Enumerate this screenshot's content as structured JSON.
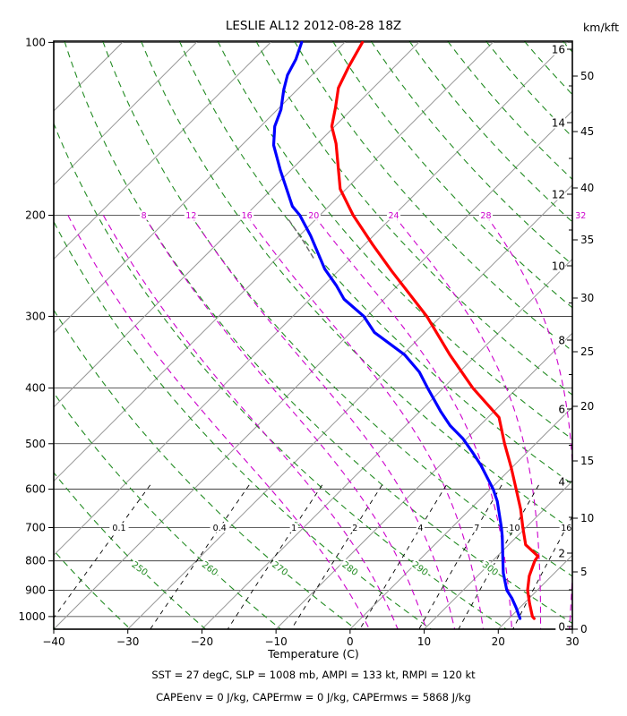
{
  "page": {
    "background": "#ffffff"
  },
  "header": {
    "title": "LESLIE AL12 2012-08-28 18Z",
    "right_axis_header": "km/kft"
  },
  "footer": {
    "line1": "SST = 27 degC, SLP = 1008 mb, AMPI = 133 kt, RMPI = 120 kt",
    "line2": "CAPEenv = 0 J/kg, CAPErmw = 0 J/kg, CAPErmws = 5868 J/kg"
  },
  "chart_data": {
    "type": "line",
    "subtype": "skew-T log-P sounding",
    "title": "LESLIE AL12 2012-08-28 18Z",
    "xlabel": "Temperature (C)",
    "x_axis": {
      "min": -40,
      "max": 30,
      "ticks": [
        -40,
        -30,
        -20,
        -10,
        0,
        10,
        20,
        30
      ]
    },
    "pressure_axis": {
      "scale": "log",
      "top_mb": 100,
      "bottom_mb": 1050,
      "ticks_mb": [
        100,
        200,
        300,
        400,
        500,
        600,
        700,
        800,
        900,
        1000
      ]
    },
    "altitude_axis": {
      "header": "km/kft",
      "km_labels": [
        [
          16,
          55
        ],
        [
          14,
          137
        ],
        [
          12,
          217
        ],
        [
          10,
          297
        ],
        [
          8,
          380
        ],
        [
          6,
          457
        ],
        [
          4,
          538
        ],
        [
          2,
          618
        ],
        [
          0,
          700
        ]
      ],
      "kft_labels": [
        [
          50,
          85
        ],
        [
          45,
          147
        ],
        [
          40,
          210
        ],
        [
          35,
          268
        ],
        [
          30,
          333
        ],
        [
          25,
          393
        ],
        [
          20,
          454
        ],
        [
          15,
          515
        ],
        [
          10,
          579
        ],
        [
          5,
          639
        ],
        [
          0,
          703
        ]
      ]
    },
    "grid": {
      "isotherms_C": {
        "min": -120,
        "max": 30,
        "step": 10
      },
      "dry_adiabats_K": {
        "min": 230,
        "max": 450,
        "step": 10,
        "labeled": [
          250,
          260,
          270,
          280,
          290,
          300
        ]
      },
      "moist_adiabats_C": {
        "min": 0,
        "max": 40,
        "step": 4,
        "labeled": [
          8,
          12,
          16,
          20,
          24,
          28,
          32
        ],
        "label_pressure_mb": 200,
        "top_mb": 200
      },
      "mixing_ratio_g_kg": {
        "values": [
          0.1,
          0.4,
          1,
          2,
          4,
          7,
          10,
          16
        ],
        "label_pressure_mb": 700,
        "top_mb": 590
      }
    },
    "series": [
      {
        "name": "temperature",
        "color": "#ff0000",
        "points_p_T": [
          [
            1008,
            23.4
          ],
          [
            1000,
            22.9
          ],
          [
            950,
            20.8
          ],
          [
            900,
            18.7
          ],
          [
            850,
            17.0
          ],
          [
            800,
            15.7
          ],
          [
            785,
            15.5
          ],
          [
            750,
            12.3
          ],
          [
            700,
            9.6
          ],
          [
            650,
            6.8
          ],
          [
            600,
            3.5
          ],
          [
            550,
            -0.1
          ],
          [
            500,
            -4.2
          ],
          [
            450,
            -8.5
          ],
          [
            400,
            -16.0
          ],
          [
            350,
            -23.6
          ],
          [
            300,
            -31.9
          ],
          [
            250,
            -42.8
          ],
          [
            225,
            -48.9
          ],
          [
            200,
            -55.5
          ],
          [
            180,
            -60.8
          ],
          [
            150,
            -67.5
          ],
          [
            140,
            -70.4
          ],
          [
            130,
            -72.4
          ],
          [
            120,
            -74.7
          ],
          [
            110,
            -76.2
          ],
          [
            100,
            -77.6
          ]
        ]
      },
      {
        "name": "dewpoint",
        "color": "#0000ff",
        "points_p_T": [
          [
            1008,
            21.5
          ],
          [
            965,
            19.5
          ],
          [
            930,
            17.7
          ],
          [
            900,
            15.9
          ],
          [
            840,
            13.1
          ],
          [
            800,
            11.4
          ],
          [
            725,
            8.0
          ],
          [
            700,
            6.7
          ],
          [
            630,
            2.6
          ],
          [
            600,
            0.4
          ],
          [
            545,
            -4.5
          ],
          [
            520,
            -7.1
          ],
          [
            490,
            -10.5
          ],
          [
            465,
            -14.0
          ],
          [
            440,
            -17.1
          ],
          [
            400,
            -22.1
          ],
          [
            375,
            -25.4
          ],
          [
            350,
            -29.7
          ],
          [
            320,
            -36.8
          ],
          [
            300,
            -40.4
          ],
          [
            280,
            -45.4
          ],
          [
            265,
            -48.3
          ],
          [
            248,
            -52.1
          ],
          [
            217,
            -58.5
          ],
          [
            200,
            -62.7
          ],
          [
            193,
            -64.9
          ],
          [
            167,
            -71.4
          ],
          [
            151,
            -75.7
          ],
          [
            140,
            -78.1
          ],
          [
            131,
            -79.5
          ],
          [
            121,
            -81.8
          ],
          [
            114,
            -83.3
          ],
          [
            107,
            -84.3
          ],
          [
            100,
            -85.8
          ]
        ]
      },
      {
        "name": "gray-dashed-segment",
        "color": "#666666",
        "dashed": true,
        "points_p_T": [
          [
            204,
            -63.5
          ],
          [
            222,
            -58.7
          ],
          [
            240,
            -54.5
          ]
        ]
      }
    ],
    "colors": {
      "isotherm": "#979797",
      "isobar": "#2a2a2a",
      "dry_adiabat": "#228b22",
      "moist_adiabat": "#cc00cc",
      "mixing_ratio": "#000000",
      "frame": "#000000",
      "temperature": "#ff0000",
      "dewpoint": "#0000ff"
    }
  }
}
